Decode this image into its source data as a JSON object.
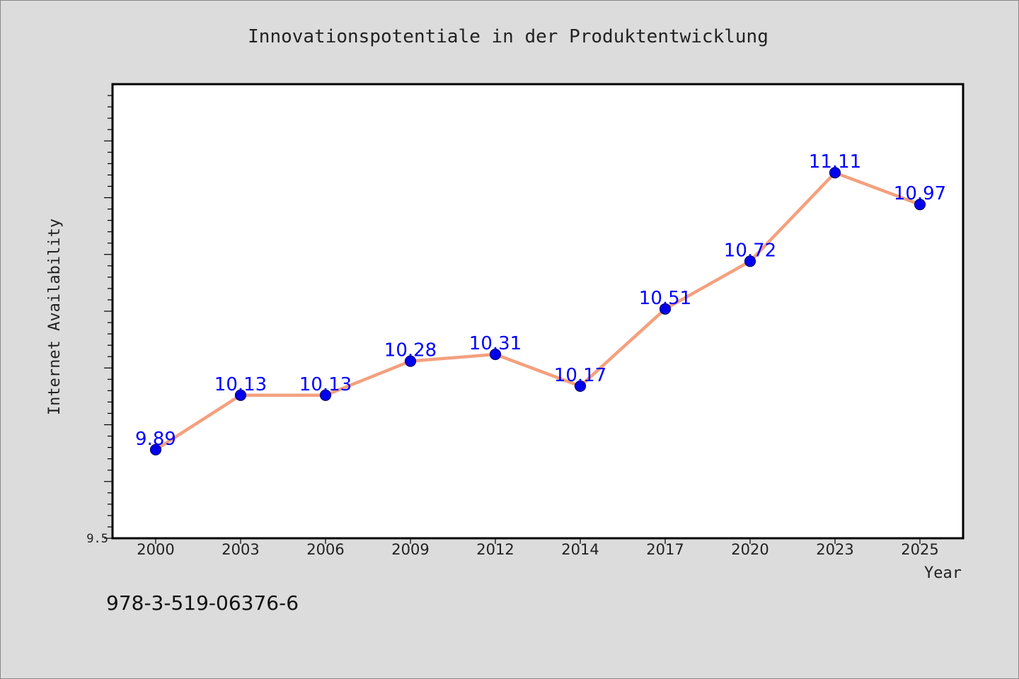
{
  "chart_data": {
    "type": "line",
    "title": "Innovationspotentiale in der Produktentwicklung",
    "xlabel": "Year",
    "ylabel": "Internet Availability",
    "categories": [
      "2000",
      "2003",
      "2006",
      "2009",
      "2012",
      "2014",
      "2017",
      "2020",
      "2023",
      "2025"
    ],
    "series": [
      {
        "values": [
          9.89,
          10.13,
          10.13,
          10.28,
          10.31,
          10.17,
          10.51,
          10.72,
          11.11,
          10.97
        ]
      }
    ],
    "data_labels": [
      "9.89",
      "10.13",
      "10.13",
      "10.28",
      "10.31",
      "10.17",
      "10.51",
      "10.72",
      "11.11",
      "10.97"
    ],
    "ylim": [
      9.5,
      11.5
    ],
    "y_tick_labels": [
      "9.5"
    ],
    "grid": false,
    "colors": {
      "line": "#f4a07e",
      "marker": "#0000ee",
      "marker_edge": "#000066",
      "label": "#0000ff",
      "background": "#dcdcdc",
      "plot_bg": "#ffffff"
    }
  },
  "footer": {
    "isbn": "978-3-519-06376-6"
  }
}
